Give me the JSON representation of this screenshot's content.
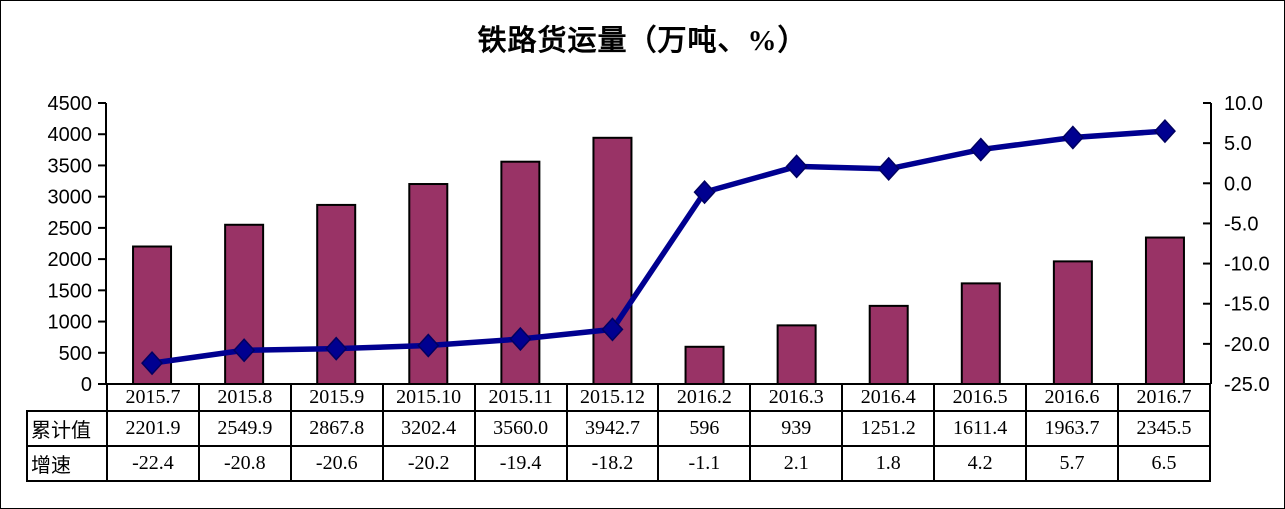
{
  "title": "铁路货运量（万吨、%）",
  "chart_data": {
    "type": "bar",
    "subtype": "combo-bar-line",
    "title": "铁路货运量（万吨、%）",
    "categories": [
      "2015.7",
      "2015.8",
      "2015.9",
      "2015.10",
      "2015.11",
      "2015.12",
      "2016.2",
      "2016.3",
      "2016.4",
      "2016.5",
      "2016.6",
      "2016.7"
    ],
    "series": [
      {
        "name": "累计值",
        "chart": "bar",
        "axis": "left",
        "values": [
          2201.9,
          2549.9,
          2867.8,
          3202.4,
          3560.0,
          3942.7,
          596,
          939,
          1251.2,
          1611.4,
          1963.7,
          2345.5
        ],
        "color": "#993366"
      },
      {
        "name": "增速",
        "chart": "line",
        "axis": "right",
        "values": [
          -22.4,
          -20.8,
          -20.6,
          -20.2,
          -19.4,
          -18.2,
          -1.1,
          2.1,
          1.8,
          4.2,
          5.7,
          6.5
        ],
        "color": "#000090"
      }
    ],
    "left_axis": {
      "min": 0,
      "max": 4500,
      "step": 500,
      "tick_labels": [
        "4500",
        "4000",
        "3500",
        "3000",
        "2500",
        "2000",
        "1500",
        "1000",
        "500",
        "0"
      ]
    },
    "right_axis": {
      "min": -25,
      "max": 10,
      "step": 5,
      "tick_labels": [
        "10.0",
        "5.0",
        "0.0",
        "-5.0",
        "-10.0",
        "-15.0",
        "-20.0",
        "-25.0"
      ]
    },
    "gridlines": false,
    "legend_position": "none"
  },
  "table": {
    "corner": "",
    "header": [
      "2015.7",
      "2015.8",
      "2015.9",
      "2015.10",
      "2015.11",
      "2015.12",
      "2016.2",
      "2016.3",
      "2016.4",
      "2016.5",
      "2016.6",
      "2016.7"
    ],
    "rows": [
      {
        "label": "累计值",
        "cells": [
          "2201.9",
          "2549.9",
          "2867.8",
          "3202.4",
          "3560.0",
          "3942.7",
          "596",
          "939",
          "1251.2",
          "1611.4",
          "1963.7",
          "2345.5"
        ]
      },
      {
        "label": "增速",
        "cells": [
          "-22.4",
          "-20.8",
          "-20.6",
          "-20.2",
          "-19.4",
          "-18.2",
          "-1.1",
          "2.1",
          "1.8",
          "4.2",
          "5.7",
          "6.5"
        ]
      }
    ]
  },
  "colors": {
    "bar_fill": "#993366",
    "bar_border": "#000000",
    "line": "#000090",
    "marker_border": "#000060",
    "axis": "#000000",
    "background": "#FFFFFF"
  }
}
